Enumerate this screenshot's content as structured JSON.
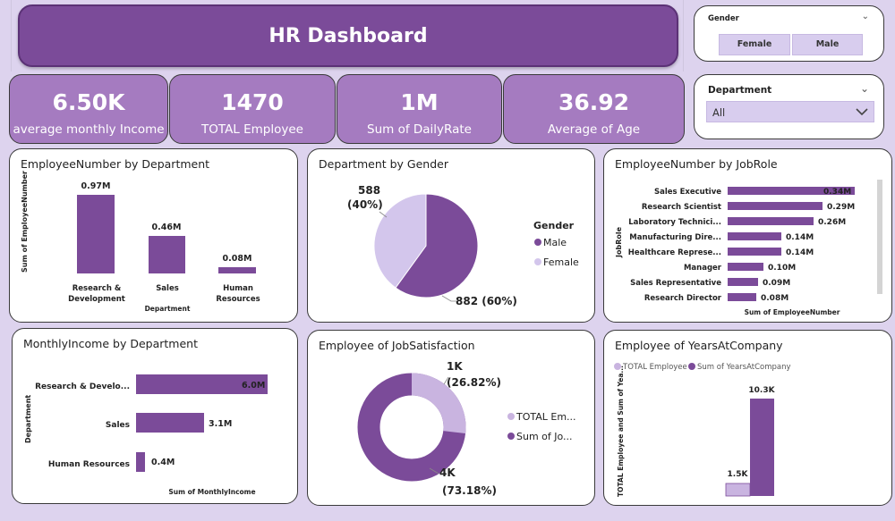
{
  "header": {
    "title": "HR Dashboard"
  },
  "kpis": [
    {
      "value": "6.50K",
      "label": "average monthly Income"
    },
    {
      "value": "1470",
      "label": "TOTAL Employee"
    },
    {
      "value": "1M",
      "label": "Sum of DailyRate"
    },
    {
      "value": "36.92",
      "label": "Average of Age"
    }
  ],
  "slicers": {
    "gender": {
      "label": "Gender",
      "options": [
        "Female",
        "Male"
      ]
    },
    "department": {
      "label": "Department",
      "selected": "All"
    }
  },
  "colors": {
    "primary": "#7b4b99",
    "light": "#cdbfe8",
    "kpi": "#a57bc0"
  },
  "charts": {
    "emp_by_dept": {
      "title": "EmployeeNumber by Department",
      "ylabel": "Sum of EmployeeNumber",
      "xlabel": "Department",
      "bar_labels": [
        "0.97M",
        "0.46M",
        "0.08M"
      ],
      "cat_lines": [
        [
          "Research &",
          "Development"
        ],
        [
          "Sales"
        ],
        [
          "Human",
          "Resources"
        ]
      ]
    },
    "dept_by_gender": {
      "title": "Department by Gender",
      "legend_title": "Gender",
      "legend": [
        "Male",
        "Female"
      ],
      "label_female": [
        "588",
        "(40%)"
      ],
      "label_male": "882 (60%)"
    },
    "emp_by_jobrole": {
      "title": "EmployeeNumber by JobRole",
      "ylabel": "JobRole",
      "xlabel": "Sum of EmployeeNumber",
      "roles": [
        "Sales Executive",
        "Research Scientist",
        "Laboratory Technici...",
        "Manufacturing Dire...",
        "Healthcare Represe...",
        "Manager",
        "Sales Representative",
        "Research Director"
      ],
      "labels": [
        "0.34M",
        "0.29M",
        "0.26M",
        "0.14M",
        "0.14M",
        "0.10M",
        "0.09M",
        "0.08M"
      ]
    },
    "income_by_dept": {
      "title": "MonthlyIncome by Department",
      "ylabel": "Department",
      "xlabel": "Sum of MonthlyIncome",
      "cats": [
        "Research & Develo...",
        "Sales",
        "Human Resources"
      ],
      "labels": [
        "6.0M",
        "3.1M",
        "0.4M"
      ]
    },
    "job_satisfaction": {
      "title": "Employee of JobSatisfaction",
      "legend": [
        "TOTAL Em...",
        "Sum of Jo..."
      ],
      "label_small": [
        "1K",
        "(26.82%)"
      ],
      "label_big": [
        "4K",
        "(73.18%)"
      ]
    },
    "years_at_company": {
      "title": "Employee of YearsAtCompany",
      "legend": [
        "TOTAL Employee",
        "Sum of YearsAtCompany"
      ],
      "ylabel": "TOTAL Employee and Sum of Yea...",
      "labels": [
        "1.5K",
        "10.3K"
      ]
    }
  },
  "chart_data": [
    {
      "type": "bar",
      "title": "EmployeeNumber by Department",
      "categories": [
        "Research & Development",
        "Sales",
        "Human Resources"
      ],
      "values": [
        0.97,
        0.46,
        0.08
      ],
      "unit": "M",
      "xlabel": "Department",
      "ylabel": "Sum of EmployeeNumber"
    },
    {
      "type": "pie",
      "title": "Department by Gender",
      "categories": [
        "Male",
        "Female"
      ],
      "values": [
        882,
        588
      ]
    },
    {
      "type": "bar",
      "orientation": "horizontal",
      "title": "EmployeeNumber by JobRole",
      "categories": [
        "Sales Executive",
        "Research Scientist",
        "Laboratory Technici...",
        "Manufacturing Dire...",
        "Healthcare Represe...",
        "Manager",
        "Sales Representative",
        "Research Director"
      ],
      "values": [
        0.34,
        0.29,
        0.26,
        0.14,
        0.14,
        0.1,
        0.09,
        0.08
      ],
      "unit": "M",
      "xlabel": "Sum of EmployeeNumber",
      "ylabel": "JobRole"
    },
    {
      "type": "bar",
      "orientation": "horizontal",
      "title": "MonthlyIncome by Department",
      "categories": [
        "Research & Develo...",
        "Sales",
        "Human Resources"
      ],
      "values": [
        6.0,
        3.1,
        0.4
      ],
      "unit": "M",
      "xlabel": "Sum of MonthlyIncome",
      "ylabel": "Department"
    },
    {
      "type": "pie",
      "variant": "donut",
      "title": "Employee of JobSatisfaction",
      "categories": [
        "TOTAL Em...",
        "Sum of Jo..."
      ],
      "values": [
        26.82,
        73.18
      ]
    },
    {
      "type": "bar",
      "title": "Employee of YearsAtCompany",
      "series": [
        {
          "name": "TOTAL Employee",
          "values": [
            1.5
          ]
        },
        {
          "name": "Sum of YearsAtCompany",
          "values": [
            10.3
          ]
        }
      ],
      "unit": "K",
      "ylabel": "TOTAL Employee and Sum of Yea..."
    }
  ]
}
